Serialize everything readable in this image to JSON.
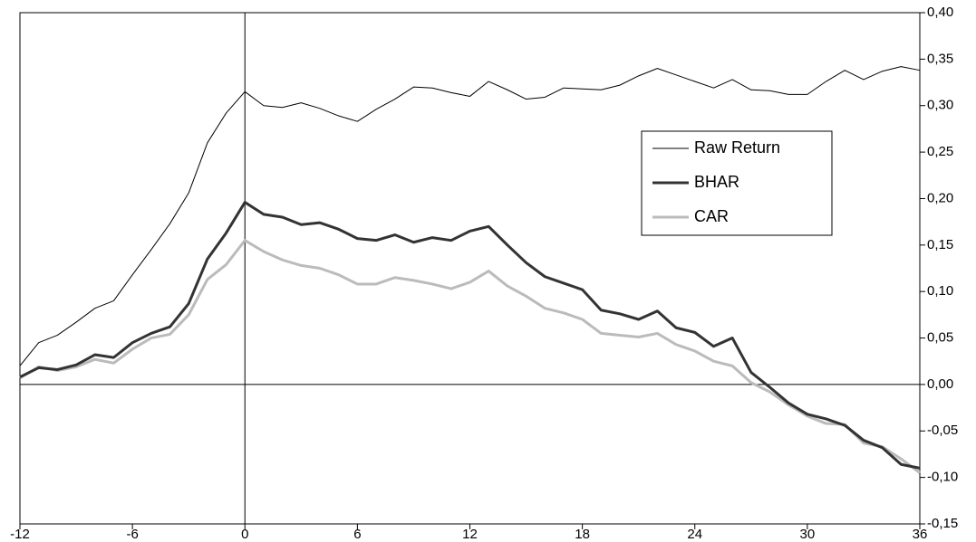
{
  "chart_data": {
    "type": "line",
    "x": [
      -12,
      -11,
      -10,
      -9,
      -8,
      -7,
      -6,
      -5,
      -4,
      -3,
      -2,
      -1,
      0,
      1,
      2,
      3,
      4,
      5,
      6,
      7,
      8,
      9,
      10,
      11,
      12,
      13,
      14,
      15,
      16,
      17,
      18,
      19,
      20,
      21,
      22,
      23,
      24,
      25,
      26,
      27,
      28,
      29,
      30,
      31,
      32,
      33,
      34,
      35,
      36
    ],
    "series": [
      {
        "name": "Raw Return",
        "color": "#000000",
        "line_width": 1,
        "values": [
          0.02,
          0.045,
          0.053,
          0.067,
          0.082,
          0.09,
          0.118,
          0.145,
          0.173,
          0.206,
          0.26,
          0.292,
          0.315,
          0.3,
          0.298,
          0.303,
          0.297,
          0.289,
          0.283,
          0.296,
          0.307,
          0.32,
          0.319,
          0.314,
          0.31,
          0.326,
          0.317,
          0.307,
          0.309,
          0.319,
          0.318,
          0.317,
          0.322,
          0.332,
          0.34,
          0.333,
          0.326,
          0.319,
          0.328,
          0.317,
          0.316,
          0.312,
          0.312,
          0.326,
          0.338,
          0.328,
          0.337,
          0.342,
          0.338
        ]
      },
      {
        "name": "BHAR",
        "color": "#333333",
        "line_width": 3,
        "values": [
          0.008,
          0.018,
          0.016,
          0.021,
          0.032,
          0.029,
          0.045,
          0.055,
          0.062,
          0.087,
          0.135,
          0.163,
          0.196,
          0.183,
          0.18,
          0.172,
          0.174,
          0.167,
          0.157,
          0.155,
          0.161,
          0.153,
          0.158,
          0.155,
          0.165,
          0.17,
          0.15,
          0.131,
          0.116,
          0.109,
          0.102,
          0.08,
          0.076,
          0.07,
          0.079,
          0.061,
          0.056,
          0.041,
          0.05,
          0.013,
          -0.003,
          -0.02,
          -0.032,
          -0.037,
          -0.044,
          -0.06,
          -0.068,
          -0.086,
          -0.09
        ]
      },
      {
        "name": "CAR",
        "color": "#bbbbbb",
        "line_width": 3,
        "values": [
          0.007,
          0.019,
          0.015,
          0.019,
          0.027,
          0.023,
          0.038,
          0.05,
          0.054,
          0.075,
          0.113,
          0.129,
          0.155,
          0.143,
          0.134,
          0.128,
          0.125,
          0.118,
          0.108,
          0.108,
          0.115,
          0.112,
          0.108,
          0.103,
          0.11,
          0.122,
          0.106,
          0.095,
          0.082,
          0.077,
          0.07,
          0.055,
          0.053,
          0.051,
          0.055,
          0.043,
          0.036,
          0.025,
          0.02,
          0.002,
          -0.008,
          -0.022,
          -0.034,
          -0.042,
          -0.043,
          -0.063,
          -0.067,
          -0.08,
          -0.095
        ]
      }
    ],
    "xlim": [
      -12,
      36
    ],
    "xticks": [
      -12,
      -6,
      0,
      6,
      12,
      18,
      24,
      30,
      36
    ],
    "ylim": [
      -0.15,
      0.4
    ],
    "yticks": [
      {
        "value": -0.15,
        "label": "-0,15"
      },
      {
        "value": -0.1,
        "label": "-0,10"
      },
      {
        "value": -0.05,
        "label": "-0,05"
      },
      {
        "value": 0,
        "label": "0,00"
      },
      {
        "value": 0.05,
        "label": "0,05"
      },
      {
        "value": 0.1,
        "label": "0,10"
      },
      {
        "value": 0.15,
        "label": "0,15"
      },
      {
        "value": 0.2,
        "label": "0,20"
      },
      {
        "value": 0.25,
        "label": "0,25"
      },
      {
        "value": 0.3,
        "label": "0,30"
      },
      {
        "value": 0.35,
        "label": "0,35"
      },
      {
        "value": 0.4,
        "label": "0,40"
      }
    ],
    "y_axis_side": "right",
    "zero_lines": true,
    "grid": false
  }
}
